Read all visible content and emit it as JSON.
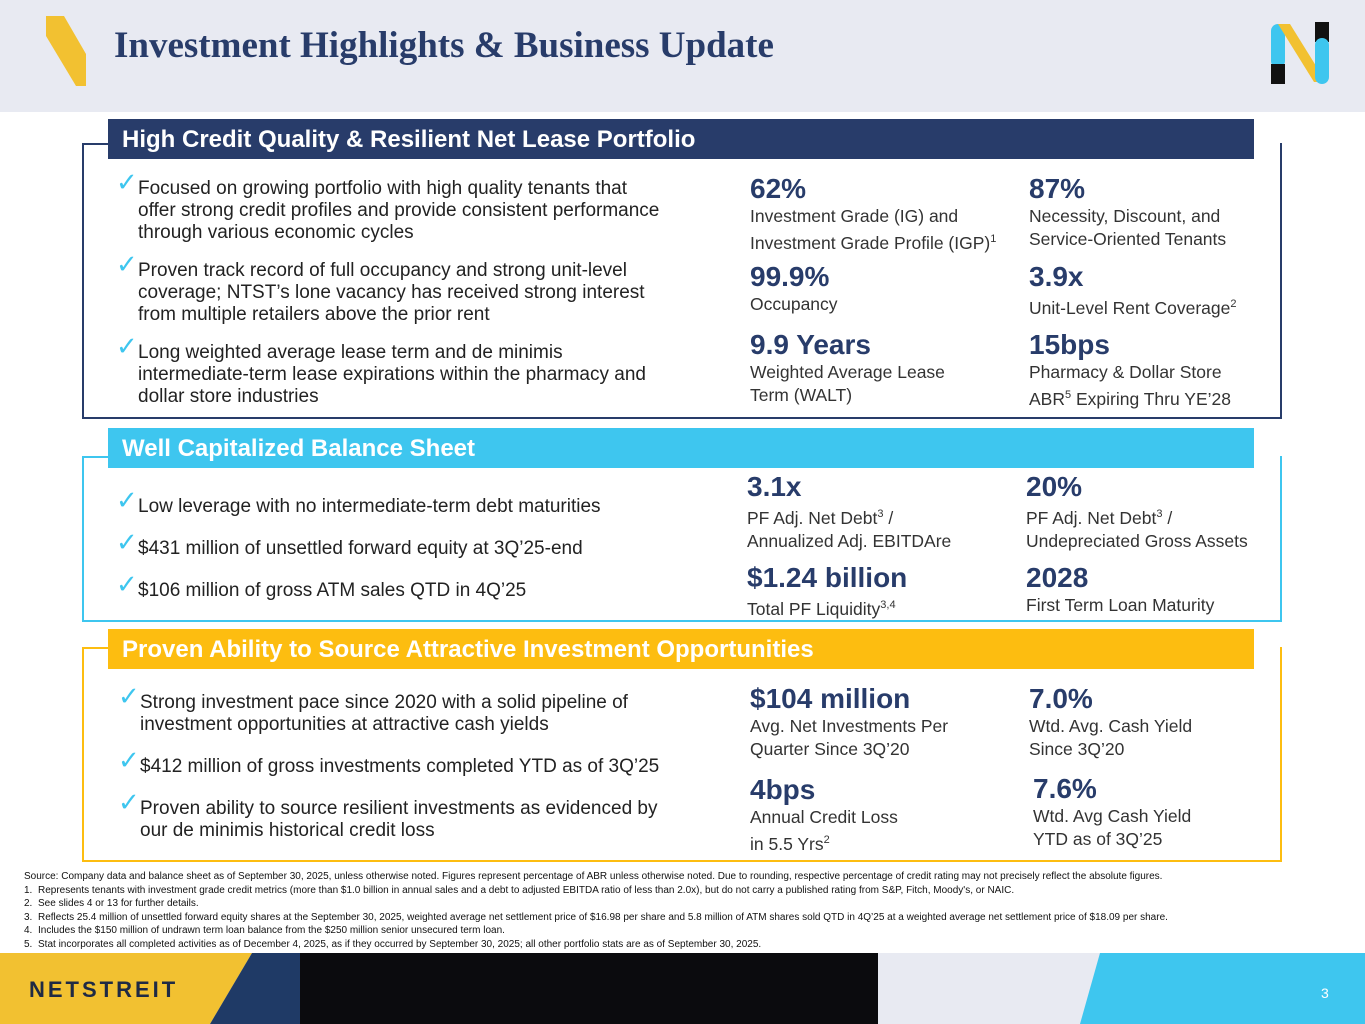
{
  "header": {
    "title": "Investment Highlights & Business Update"
  },
  "colors": {
    "navy": "#283c6a",
    "sky": "#3ec6ef",
    "gold": "#fdbd10",
    "header_bg": "#e8eaf2"
  },
  "sections": [
    {
      "heading": "High Credit Quality & Resilient Net Lease Portfolio",
      "bullets": [
        [
          "Focused on growing portfolio with high quality tenants that",
          "offer strong credit profiles and provide consistent performance",
          "through various economic cycles"
        ],
        [
          "Proven track record of full occupancy and strong unit-level",
          "coverage; NTST’s lone vacancy has received strong interest",
          "from multiple retailers above the prior rent"
        ],
        [
          "Long weighted average lease term and de minimis",
          "intermediate-term lease expirations within the pharmacy and",
          "dollar store industries"
        ]
      ],
      "stats": [
        {
          "value": "62%",
          "label": [
            "Investment Grade (IG) and",
            "Investment Grade Profile (IGP)"
          ],
          "sup": "1"
        },
        {
          "value": "87%",
          "label": [
            "Necessity, Discount, and",
            "Service-Oriented Tenants"
          ]
        },
        {
          "value": "99.9%",
          "label": [
            "Occupancy"
          ]
        },
        {
          "value": "3.9x",
          "label": [
            "Unit-Level Rent Coverage"
          ],
          "sup": "2"
        },
        {
          "value": "9.9 Years",
          "label": [
            "Weighted Average Lease",
            "Term (WALT)"
          ]
        },
        {
          "value": "15bps",
          "label": [
            "Pharmacy & Dollar Store",
            "ABR"
          ],
          "sup": "5",
          "label_after": " Expiring Thru YE’28"
        }
      ]
    },
    {
      "heading": "Well Capitalized Balance Sheet",
      "bullets": [
        [
          "Low leverage with no intermediate-term debt maturities"
        ],
        [
          "$431 million of unsettled forward equity at 3Q’25-end"
        ],
        [
          "$106 million of gross ATM sales QTD in 4Q’25"
        ]
      ],
      "stats": [
        {
          "value": "3.1x",
          "label_pre": "PF Adj. Net Debt",
          "sup": "3",
          "label_post": " /",
          "label2": "Annualized Adj. EBITDAre"
        },
        {
          "value": "20%",
          "label_pre": "PF Adj. Net Debt",
          "sup": "3",
          "label_post": " /",
          "label2": "Undepreciated Gross Assets"
        },
        {
          "value": "$1.24 billion",
          "label_pre": "Total PF Liquidity",
          "sup": "3,4"
        },
        {
          "value": "2028",
          "label_pre": "First Term Loan Maturity"
        }
      ]
    },
    {
      "heading": "Proven Ability to Source Attractive Investment Opportunities",
      "bullets": [
        [
          "Strong investment pace since 2020 with a solid pipeline of",
          "investment opportunities at attractive cash yields"
        ],
        [
          "$412 million of gross investments completed YTD as of 3Q’25"
        ],
        [
          "Proven ability to source resilient investments as evidenced by",
          "our de minimis historical credit loss"
        ]
      ],
      "stats": [
        {
          "value": "$104 million",
          "label": [
            "Avg. Net Investments Per",
            "Quarter Since 3Q’20"
          ]
        },
        {
          "value": "7.0%",
          "label": [
            "Wtd. Avg. Cash Yield",
            "Since 3Q’20"
          ]
        },
        {
          "value": "4bps",
          "label": [
            "Annual Credit Loss",
            "in 5.5 Yrs"
          ],
          "sup": "2"
        },
        {
          "value": "7.6%",
          "label": [
            "Wtd. Avg Cash Yield",
            "YTD as of 3Q’25"
          ]
        }
      ]
    }
  ],
  "footnotes": {
    "source": "Source: Company data and balance sheet as of September 30, 2025, unless otherwise noted. Figures represent percentage of ABR unless otherwise noted. Due to rounding, respective percentage of credit rating may not precisely reflect the absolute figures.",
    "items": [
      {
        "num": "1.",
        "text": "Represents tenants with investment grade credit metrics (more than $1.0 billion in annual sales and a debt to adjusted EBITDA ratio of less than 2.0x), but do not carry a published rating from S&P, Fitch, Moody's, or NAIC."
      },
      {
        "num": "2.",
        "text": "See slides 4 or 13 for further details."
      },
      {
        "num": "3.",
        "text": "Reflects 25.4 million of unsettled forward equity shares at the September 30, 2025, weighted average net settlement price of $16.98 per share and 5.8 million of ATM shares sold QTD in 4Q’25 at a weighted average net settlement price of $18.09 per share."
      },
      {
        "num": "4.",
        "text": "Includes the $150 million of undrawn term loan balance from the $250 million senior unsecured term loan."
      },
      {
        "num": "5.",
        "text": "Stat incorporates all completed activities as of December 4, 2025, as if they occurred by September 30, 2025; all other portfolio stats are as of September 30, 2025."
      }
    ]
  },
  "footer": {
    "brand": "NETSTREIT",
    "page_number": "3"
  }
}
